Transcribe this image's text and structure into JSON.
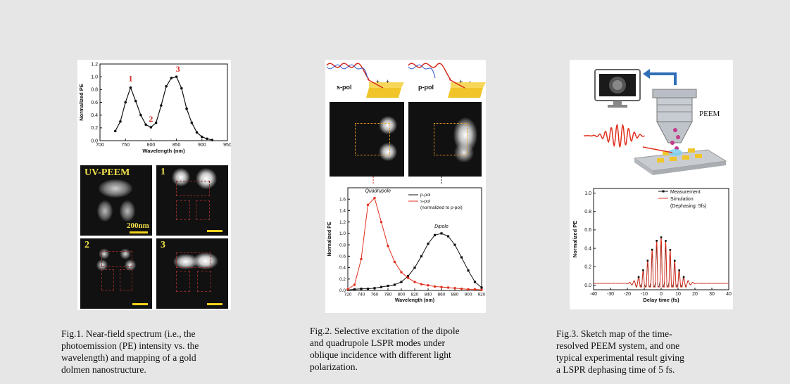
{
  "fig1": {
    "chart_data": {
      "type": "line",
      "ylabel": "Normalized PE",
      "xlabel": "Wavelength (nm)",
      "xlim": [
        700,
        950
      ],
      "ylim": [
        0.0,
        1.2
      ],
      "x_ticks": [
        "700",
        "750",
        "800",
        "850",
        "900",
        "950"
      ],
      "y_ticks": [
        "0.0",
        "0.2",
        "0.4",
        "0.6",
        "0.8",
        "1.0",
        "1.2"
      ],
      "series": [
        {
          "x": [
            730,
            740,
            750,
            760,
            770,
            780,
            790,
            800,
            810,
            820,
            830,
            840,
            850,
            860,
            870,
            880,
            890,
            900,
            910,
            920
          ],
          "values": [
            0.15,
            0.3,
            0.6,
            0.83,
            0.62,
            0.4,
            0.25,
            0.21,
            0.28,
            0.55,
            0.85,
            0.98,
            1.0,
            0.82,
            0.5,
            0.28,
            0.13,
            0.06,
            0.03,
            0.01
          ]
        }
      ],
      "annotations": [
        {
          "text": "1",
          "x": 760,
          "y": 0.93
        },
        {
          "text": "2",
          "x": 800,
          "y": 0.3
        },
        {
          "text": "3",
          "x": 853,
          "y": 1.08
        }
      ],
      "annotation_color": "#d42b1e"
    },
    "images": [
      {
        "label": "UV-PEEM",
        "scale": "200nm"
      },
      {
        "label": "1"
      },
      {
        "label": "2"
      },
      {
        "label": "3"
      }
    ],
    "caption": [
      "Fig.1. Near-field spectrum (i.e., the",
      "photoemission (PE) intensity vs. the",
      "wavelength) and mapping of a gold",
      "dolmen nanostructure."
    ]
  },
  "fig2": {
    "pol_labels": [
      "s-pol",
      "p-pol"
    ],
    "chart_data": {
      "type": "line",
      "ylabel": "Normalized PE",
      "xlabel": "Wavelength (nm)",
      "xlim": [
        720,
        920
      ],
      "ylim": [
        0.0,
        1.8
      ],
      "x_ticks": [
        "720",
        "740",
        "760",
        "780",
        "800",
        "820",
        "840",
        "860",
        "880",
        "900",
        "920"
      ],
      "y_ticks": [
        "0.0",
        "0.2",
        "0.4",
        "0.6",
        "0.8",
        "1.0",
        "1.2",
        "1.4",
        "1.6"
      ],
      "series": [
        {
          "name": "p-pol",
          "color": "#111111",
          "x": [
            720,
            730,
            740,
            750,
            760,
            770,
            780,
            790,
            800,
            810,
            820,
            830,
            840,
            850,
            860,
            870,
            880,
            890,
            900,
            910,
            920
          ],
          "values": [
            0.01,
            0.02,
            0.03,
            0.03,
            0.04,
            0.06,
            0.08,
            0.1,
            0.15,
            0.25,
            0.4,
            0.6,
            0.82,
            0.97,
            1.0,
            0.95,
            0.8,
            0.58,
            0.35,
            0.15,
            0.05
          ]
        },
        {
          "name": "s-pol",
          "color": "#e0301e",
          "x": [
            720,
            730,
            740,
            750,
            760,
            770,
            780,
            790,
            800,
            810,
            820,
            830,
            840,
            850,
            860,
            870,
            880,
            890,
            900,
            910,
            920
          ],
          "values": [
            0.02,
            0.1,
            0.55,
            1.5,
            1.62,
            1.2,
            0.78,
            0.5,
            0.32,
            0.22,
            0.15,
            0.11,
            0.09,
            0.07,
            0.06,
            0.05,
            0.04,
            0.03,
            0.02,
            0.02,
            0.01
          ]
        }
      ],
      "legend_note": "(normalized to p-pol)",
      "annotations": [
        {
          "text": "Quadrupole"
        },
        {
          "text": "Dipole"
        }
      ]
    },
    "caption": [
      "Fig.2. Selective excitation of the dipole",
      "and quadrupole LSPR modes under",
      "oblique incidence with different light",
      "polarization."
    ]
  },
  "fig3": {
    "peem_label": "PEEM",
    "chart_data": {
      "type": "line",
      "ylabel": "Normalized PE",
      "xlabel": "Delay time (fs)",
      "xlim": [
        -40,
        40
      ],
      "ylim": [
        -0.05,
        1.05
      ],
      "x_ticks": [
        "-40",
        "-30",
        "-20",
        "-10",
        "0",
        "10",
        "20",
        "30",
        "40"
      ],
      "y_ticks": [
        "0.0",
        "0.2",
        "0.4",
        "0.6",
        "0.8",
        "1.0"
      ],
      "series": [
        {
          "name": "Measurement",
          "color": "#222222"
        },
        {
          "name": "Simulation",
          "color": "#e0301e"
        }
      ],
      "legend_note": "(Dephasing: 5fs)"
    },
    "caption": [
      "Fig.3. Sketch map of the time-",
      "resolved PEEM system, and one",
      "typical experimental result giving",
      "a LSPR dephasing time of 5 fs."
    ]
  }
}
